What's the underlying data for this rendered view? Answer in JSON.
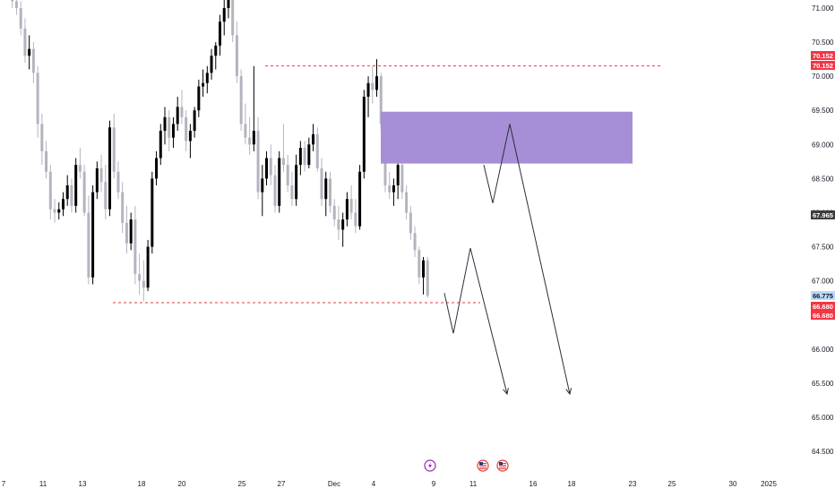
{
  "chart_data": {
    "type": "candlestick",
    "y_axis": {
      "position": "right",
      "ylim": [
        64.3,
        71.15
      ],
      "tick_labels": [
        "71.000",
        "70.500",
        "70.000",
        "69.500",
        "69.000",
        "68.500",
        "68.000",
        "67.500",
        "67.000",
        "66.500",
        "66.000",
        "65.500",
        "65.000",
        "64.500"
      ],
      "tick_values": [
        71.0,
        70.5,
        70.0,
        69.5,
        69.0,
        68.5,
        68.0,
        67.5,
        67.0,
        66.5,
        66.0,
        65.5,
        65.0,
        64.5
      ]
    },
    "x_axis": {
      "tick_labels": [
        "7",
        "11",
        "13",
        "18",
        "20",
        "25",
        "27",
        "Dec",
        "4",
        "9",
        "11",
        "16",
        "18",
        "23",
        "25",
        "30",
        "2025"
      ]
    },
    "price_badges": [
      {
        "label": "70.152",
        "value": 70.152,
        "color": "#f23645"
      },
      {
        "label": "70.152",
        "value": 70.152,
        "color": "#f23645"
      },
      {
        "label": "67.965",
        "value": 67.965,
        "color": "#3d3d3d"
      },
      {
        "label": "66.775",
        "value": 66.775,
        "color": "#bbd9fb"
      },
      {
        "label": "66.680",
        "value": 66.68,
        "color": "#f23645"
      },
      {
        "label": "66.680",
        "value": 66.68,
        "color": "#f23645"
      }
    ],
    "horizontal_levels": [
      {
        "value": 70.152,
        "style": "dashed",
        "color": "#f23645"
      },
      {
        "value": 66.68,
        "style": "dashed",
        "color": "#f23645"
      }
    ],
    "zone": {
      "top": 69.48,
      "bottom": 68.72,
      "color": "#a68fd6"
    },
    "projection_paths": [
      [
        [
          66.82,
          66.82
        ],
        [
          66.23,
          66.23
        ],
        [
          67.48,
          67.48
        ],
        [
          65.34,
          65.34
        ]
      ],
      [
        [
          68.7,
          68.7
        ],
        [
          68.14,
          68.14
        ],
        [
          69.3,
          69.3
        ],
        [
          65.34,
          65.34
        ]
      ]
    ],
    "event_icons": [
      "lightning-icon",
      "us-flag-icon",
      "us-flag-icon"
    ],
    "candles": [
      [
        71.35,
        71.6,
        71.2,
        71.3
      ],
      [
        71.3,
        71.45,
        71.0,
        71.1
      ],
      [
        71.1,
        71.25,
        70.9,
        71.0
      ],
      [
        71.0,
        71.1,
        70.6,
        70.7
      ],
      [
        70.7,
        70.85,
        70.2,
        70.3
      ],
      [
        70.3,
        70.6,
        70.1,
        70.4
      ],
      [
        70.4,
        70.5,
        69.9,
        70.05
      ],
      [
        70.05,
        70.15,
        69.1,
        69.3
      ],
      [
        69.3,
        69.45,
        68.7,
        68.9
      ],
      [
        68.9,
        69.05,
        68.5,
        68.6
      ],
      [
        68.6,
        68.7,
        67.9,
        68.05
      ],
      [
        68.05,
        68.2,
        67.85,
        68.0
      ],
      [
        68.0,
        68.15,
        67.9,
        68.05
      ],
      [
        68.05,
        68.3,
        67.95,
        68.2
      ],
      [
        68.2,
        68.55,
        68.1,
        68.4
      ],
      [
        68.4,
        68.5,
        68.0,
        68.1
      ],
      [
        68.1,
        68.8,
        68.0,
        68.7
      ],
      [
        68.7,
        68.95,
        68.5,
        68.6
      ],
      [
        68.6,
        68.7,
        67.95,
        68.0
      ],
      [
        68.0,
        68.25,
        66.95,
        67.05
      ],
      [
        67.05,
        68.4,
        66.95,
        68.3
      ],
      [
        68.3,
        68.75,
        68.2,
        68.65
      ],
      [
        68.65,
        68.85,
        68.3,
        68.45
      ],
      [
        68.45,
        68.7,
        67.9,
        68.05
      ],
      [
        68.05,
        69.35,
        67.95,
        69.25
      ],
      [
        69.25,
        69.45,
        68.5,
        68.6
      ],
      [
        68.6,
        68.75,
        68.2,
        68.3
      ],
      [
        68.3,
        68.45,
        67.7,
        67.85
      ],
      [
        67.85,
        68.1,
        67.4,
        67.55
      ],
      [
        67.55,
        68.0,
        67.45,
        67.9
      ],
      [
        67.9,
        68.1,
        66.95,
        67.1
      ],
      [
        67.1,
        67.4,
        66.8,
        67.0
      ],
      [
        67.0,
        67.3,
        66.7,
        66.9
      ],
      [
        66.9,
        67.6,
        66.85,
        67.5
      ],
      [
        67.5,
        68.6,
        67.4,
        68.5
      ],
      [
        68.5,
        68.9,
        68.4,
        68.8
      ],
      [
        68.8,
        69.3,
        68.7,
        69.2
      ],
      [
        69.2,
        69.55,
        69.0,
        69.4
      ],
      [
        69.4,
        69.5,
        68.9,
        69.1
      ],
      [
        69.1,
        69.4,
        68.95,
        69.3
      ],
      [
        69.3,
        69.7,
        69.2,
        69.55
      ],
      [
        69.55,
        69.8,
        69.3,
        69.4
      ],
      [
        69.4,
        69.5,
        68.9,
        69.05
      ],
      [
        69.05,
        69.3,
        68.8,
        69.2
      ],
      [
        69.2,
        69.55,
        69.1,
        69.5
      ],
      [
        69.5,
        69.95,
        69.4,
        69.85
      ],
      [
        69.85,
        70.1,
        69.7,
        69.9
      ],
      [
        69.9,
        70.15,
        69.75,
        70.05
      ],
      [
        70.05,
        70.4,
        69.95,
        70.3
      ],
      [
        70.3,
        70.5,
        70.1,
        70.45
      ],
      [
        70.45,
        70.9,
        70.3,
        70.8
      ],
      [
        70.8,
        71.2,
        70.6,
        71.0
      ],
      [
        71.0,
        71.5,
        70.85,
        71.3
      ],
      [
        71.3,
        71.45,
        70.5,
        70.6
      ],
      [
        70.6,
        70.8,
        69.9,
        70.0
      ],
      [
        70.0,
        70.1,
        69.2,
        69.3
      ],
      [
        69.3,
        69.6,
        69.0,
        69.1
      ],
      [
        69.1,
        69.4,
        68.85,
        69.0
      ],
      [
        69.0,
        70.15,
        68.9,
        69.2
      ],
      [
        69.2,
        69.4,
        68.2,
        68.3
      ],
      [
        68.3,
        68.7,
        67.95,
        68.5
      ],
      [
        68.5,
        68.9,
        68.4,
        68.8
      ],
      [
        68.8,
        69.0,
        68.4,
        68.55
      ],
      [
        68.55,
        68.7,
        68.0,
        68.1
      ],
      [
        68.1,
        68.9,
        68.0,
        68.8
      ],
      [
        68.8,
        69.3,
        68.6,
        68.7
      ],
      [
        68.7,
        68.85,
        68.3,
        68.4
      ],
      [
        68.4,
        68.6,
        68.1,
        68.2
      ],
      [
        68.2,
        68.85,
        68.1,
        68.7
      ],
      [
        68.7,
        69.05,
        68.55,
        68.95
      ],
      [
        68.95,
        69.05,
        68.6,
        68.7
      ],
      [
        68.7,
        69.1,
        68.65,
        69.0
      ],
      [
        69.0,
        69.3,
        68.9,
        69.15
      ],
      [
        69.15,
        69.25,
        68.6,
        68.65
      ],
      [
        68.65,
        68.8,
        68.1,
        68.2
      ],
      [
        68.2,
        68.6,
        67.95,
        68.5
      ],
      [
        68.5,
        68.6,
        68.0,
        68.1
      ],
      [
        68.1,
        68.2,
        67.8,
        67.9
      ],
      [
        67.9,
        68.1,
        67.6,
        67.75
      ],
      [
        67.75,
        68.0,
        67.5,
        67.9
      ],
      [
        67.9,
        68.3,
        67.8,
        68.2
      ],
      [
        68.2,
        68.4,
        67.9,
        68.0
      ],
      [
        68.0,
        68.2,
        67.7,
        67.8
      ],
      [
        67.8,
        68.7,
        67.75,
        68.6
      ],
      [
        68.6,
        69.8,
        68.5,
        69.7
      ],
      [
        69.7,
        70.0,
        69.4,
        69.9
      ],
      [
        69.9,
        70.15,
        69.6,
        69.8
      ],
      [
        69.8,
        70.25,
        69.7,
        70.0
      ],
      [
        70.0,
        70.05,
        69.2,
        69.3
      ],
      [
        69.3,
        69.4,
        68.3,
        68.4
      ],
      [
        68.4,
        68.6,
        68.2,
        68.3
      ],
      [
        68.3,
        68.5,
        68.1,
        68.4
      ],
      [
        68.4,
        68.8,
        68.2,
        68.7
      ],
      [
        68.7,
        68.9,
        68.2,
        68.3
      ],
      [
        68.3,
        68.4,
        67.9,
        68.0
      ],
      [
        68.0,
        68.1,
        67.6,
        67.7
      ],
      [
        67.7,
        67.8,
        67.35,
        67.45
      ],
      [
        67.45,
        67.5,
        66.95,
        67.05
      ],
      [
        67.05,
        67.35,
        66.8,
        67.3
      ],
      [
        67.3,
        67.35,
        66.75,
        66.78
      ]
    ]
  }
}
